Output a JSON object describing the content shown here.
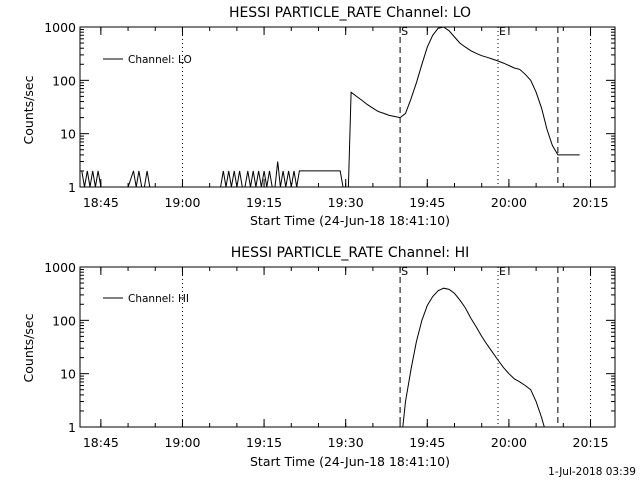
{
  "footer": {
    "timestamp": "1-Jul-2018 03:39"
  },
  "chart_data": [
    {
      "type": "line",
      "title": "HESSI PARTICLE_RATE Channel: LO",
      "xlabel": "Start Time (24-Jun-18 18:41:10)",
      "ylabel": "Counts/sec",
      "y_scale": "log",
      "ylim": [
        1,
        1000
      ],
      "xlim": [
        "18:41:10",
        "20:19:30"
      ],
      "x_ticks": [
        "18:45",
        "19:00",
        "19:15",
        "19:30",
        "19:45",
        "20:00",
        "20:15"
      ],
      "y_ticks": [
        "1",
        "10",
        "100",
        "1000"
      ],
      "legend": {
        "position": "top-left",
        "entries": [
          "Channel: LO"
        ]
      },
      "markers": [
        {
          "label": "S",
          "time": "19:40",
          "style": "dashed"
        },
        {
          "label": "E",
          "time": "19:58",
          "style": "dotted"
        }
      ],
      "vlines": [
        {
          "time": "19:00",
          "style": "dotted"
        },
        {
          "time": "20:09",
          "style": "dashed"
        },
        {
          "time": "20:15",
          "style": "dotted"
        }
      ],
      "grid": false,
      "series": [
        {
          "name": "Channel: LO",
          "x": [
            "18:41:30",
            "18:42:00",
            "18:42:30",
            "18:43:00",
            "18:43:30",
            "18:44:00",
            "18:44:30",
            "18:45:00",
            "18:45:30",
            "18:46:00",
            "18:47:00",
            "18:48:00",
            "18:49:00",
            "18:50:00",
            "18:51:00",
            "18:51:30",
            "18:52:00",
            "18:52:30",
            "18:53:00",
            "18:53:30",
            "18:54:00",
            "18:55:00",
            "18:56:00",
            "18:57:00",
            "18:58:00",
            "18:59:00",
            "19:00:00",
            "19:01:00",
            "19:02:00",
            "19:03:00",
            "19:04:00",
            "19:05:00",
            "19:06:00",
            "19:07:00",
            "19:07:30",
            "19:08:00",
            "19:08:30",
            "19:09:00",
            "19:09:30",
            "19:10:00",
            "19:10:30",
            "19:11:00",
            "19:11:30",
            "19:12:00",
            "19:12:30",
            "19:13:00",
            "19:13:30",
            "19:14:00",
            "19:14:30",
            "19:15:00",
            "19:15:30",
            "19:16:00",
            "19:16:30",
            "19:17:00",
            "19:17:30",
            "19:18:00",
            "19:18:30",
            "19:19:00",
            "19:19:30",
            "19:20:00",
            "19:20:30",
            "19:21:00",
            "19:21:30",
            "19:22:00",
            "19:23:00",
            "19:24:00",
            "19:25:00",
            "19:26:00",
            "19:27:00",
            "19:28:00",
            "19:29:00",
            "19:29:30",
            "19:30:00",
            "19:30:30",
            "19:31:00",
            "19:32:00",
            "19:33:00",
            "19:34:00",
            "19:35:00",
            "19:36:00",
            "19:37:00",
            "19:38:00",
            "19:39:00",
            "19:40:00",
            "19:41:00",
            "19:42:00",
            "19:43:00",
            "19:44:00",
            "19:45:00",
            "19:46:00",
            "19:47:00",
            "19:48:00",
            "19:49:00",
            "19:50:00",
            "19:51:00",
            "19:52:00",
            "19:53:00",
            "19:54:00",
            "19:55:00",
            "19:56:00",
            "19:57:00",
            "19:58:00",
            "19:59:00",
            "20:00:00",
            "20:01:00",
            "20:02:00",
            "20:03:00",
            "20:04:00",
            "20:05:00",
            "20:06:00",
            "20:07:00",
            "20:08:00",
            "20:09:00",
            "20:10:00",
            "20:11:00",
            "20:12:00",
            "20:13:00"
          ],
          "y": [
            2,
            1,
            2,
            1,
            2,
            1,
            2,
            1,
            1,
            1,
            1,
            1,
            1,
            1,
            2,
            1,
            2,
            1,
            1,
            2,
            1,
            1,
            1,
            1,
            1,
            1,
            1,
            1,
            1,
            1,
            1,
            1,
            1,
            1,
            2,
            1,
            2,
            1,
            2,
            1,
            2,
            1,
            1,
            2,
            1,
            2,
            1,
            2,
            1,
            2,
            1,
            2,
            1,
            1,
            3,
            1,
            2,
            1,
            2,
            1,
            2,
            1,
            2,
            2,
            2,
            2,
            2,
            2,
            2,
            2,
            2,
            1,
            1,
            1,
            60,
            50,
            42,
            35,
            30,
            26,
            24,
            22,
            21,
            20,
            24,
            45,
            90,
            200,
            420,
            700,
            950,
            1000,
            850,
            650,
            500,
            420,
            360,
            320,
            290,
            270,
            250,
            230,
            210,
            190,
            170,
            160,
            130,
            100,
            60,
            30,
            12,
            6,
            4,
            4,
            4,
            4,
            4
          ]
        }
      ]
    },
    {
      "type": "line",
      "title": "HESSI PARTICLE_RATE Channel: HI",
      "xlabel": "Start Time (24-Jun-18 18:41:10)",
      "ylabel": "Counts/sec",
      "y_scale": "log",
      "ylim": [
        1,
        1000
      ],
      "xlim": [
        "18:41:10",
        "20:19:30"
      ],
      "x_ticks": [
        "18:45",
        "19:00",
        "19:15",
        "19:30",
        "19:45",
        "20:00",
        "20:15"
      ],
      "y_ticks": [
        "1",
        "10",
        "100",
        "1000"
      ],
      "legend": {
        "position": "top-left",
        "entries": [
          "Channel: HI"
        ]
      },
      "markers": [
        {
          "label": "S",
          "time": "19:40",
          "style": "dashed"
        },
        {
          "label": "E",
          "time": "19:58",
          "style": "dotted"
        }
      ],
      "vlines": [
        {
          "time": "19:00",
          "style": "dotted"
        },
        {
          "time": "20:09",
          "style": "dashed"
        },
        {
          "time": "20:15",
          "style": "dotted"
        }
      ],
      "grid": false,
      "series": [
        {
          "name": "Channel: HI",
          "x": [
            "19:40:30",
            "19:41:00",
            "19:42:00",
            "19:43:00",
            "19:44:00",
            "19:45:00",
            "19:46:00",
            "19:47:00",
            "19:48:00",
            "19:49:00",
            "19:50:00",
            "19:51:00",
            "19:52:00",
            "19:53:00",
            "19:54:00",
            "19:55:00",
            "19:56:00",
            "19:57:00",
            "19:58:00",
            "19:59:00",
            "20:00:00",
            "20:01:00",
            "20:02:00",
            "20:03:00",
            "20:04:00",
            "20:05:00",
            "20:06:00",
            "20:06:30"
          ],
          "y": [
            1,
            3,
            12,
            40,
            100,
            190,
            280,
            360,
            400,
            380,
            320,
            240,
            170,
            110,
            75,
            50,
            35,
            25,
            18,
            13,
            10,
            8,
            7,
            6,
            5,
            3,
            1.5,
            1
          ]
        }
      ]
    }
  ]
}
